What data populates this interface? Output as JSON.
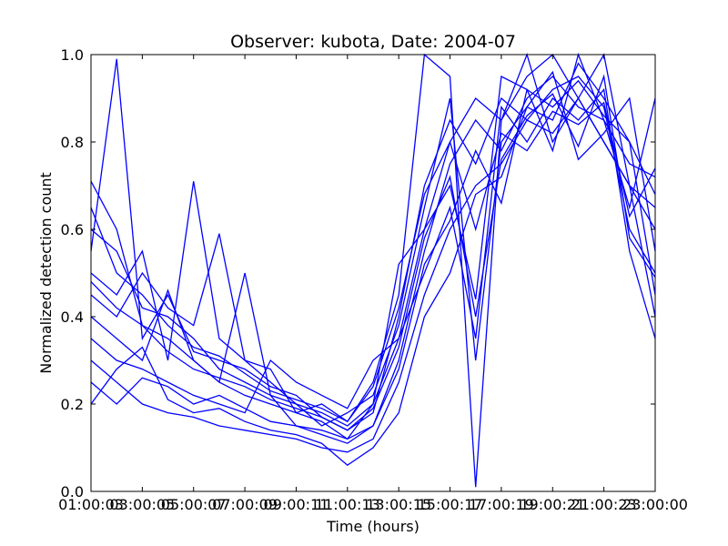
{
  "chart_data": {
    "type": "line",
    "title": "Observer: kubota, Date: 2004-07",
    "xlabel": "Time (hours)",
    "ylabel": "Normalized detection count",
    "x": [
      "01:00:00",
      "02:00:00",
      "03:00:00",
      "04:00:00",
      "05:00:00",
      "06:00:00",
      "07:00:00",
      "08:00:00",
      "09:00:00",
      "10:00:00",
      "11:00:00",
      "12:00:00",
      "13:00:00",
      "14:00:00",
      "15:00:00",
      "16:00:00",
      "17:00:00",
      "18:00:00",
      "19:00:00",
      "20:00:00",
      "21:00:00",
      "22:00:00",
      "23:00:00"
    ],
    "x_tick_labels": [
      "01:00:00",
      "03:00:00",
      "05:00:00",
      "07:00:00",
      "09:00:00",
      "11:00:00",
      "13:00:00",
      "15:00:00",
      "17:00:00",
      "19:00:00",
      "21:00:00",
      "23:00:00"
    ],
    "overlapping_tick_labels": [
      "01:00:03",
      "03:00:05",
      "05:00:07",
      "07:00:09",
      "09:00:11",
      "11:00:13",
      "13:00:15",
      "15:00:17",
      "17:00:19",
      "19:00:21",
      "21:00:23",
      "23:00:00"
    ],
    "ylim": [
      0.0,
      1.0
    ],
    "y_ticks": [
      "0.0",
      "0.2",
      "0.4",
      "0.6",
      "0.8",
      "1.0"
    ],
    "line_color": "#0000ff",
    "grid": false,
    "series": [
      {
        "values": [
          0.71,
          0.6,
          0.38,
          0.35,
          0.3,
          0.25,
          0.22,
          0.2,
          0.18,
          0.16,
          0.12,
          0.15,
          0.3,
          0.55,
          0.75,
          0.85,
          0.78,
          0.9,
          0.95,
          0.88,
          0.85,
          0.75,
          0.72
        ]
      },
      {
        "values": [
          0.6,
          0.55,
          0.42,
          0.4,
          0.35,
          0.28,
          0.25,
          0.22,
          0.2,
          0.18,
          0.15,
          0.2,
          0.35,
          0.6,
          0.8,
          0.9,
          0.85,
          0.95,
          1.0,
          0.9,
          0.8,
          0.7,
          0.65
        ]
      },
      {
        "values": [
          0.55,
          0.99,
          0.35,
          0.45,
          0.32,
          0.3,
          0.28,
          0.24,
          0.22,
          0.17,
          0.14,
          0.18,
          0.4,
          0.7,
          0.85,
          0.75,
          0.9,
          0.85,
          0.92,
          0.95,
          0.88,
          0.6,
          0.5
        ]
      },
      {
        "values": [
          0.5,
          0.45,
          0.55,
          0.3,
          0.71,
          0.35,
          0.3,
          0.25,
          0.2,
          0.15,
          0.18,
          0.22,
          0.38,
          0.65,
          0.9,
          0.3,
          0.8,
          0.88,
          0.85,
          0.98,
          0.9,
          0.8,
          0.45
        ]
      },
      {
        "values": [
          0.45,
          0.4,
          0.5,
          0.42,
          0.38,
          0.59,
          0.3,
          0.28,
          0.18,
          0.2,
          0.16,
          0.25,
          0.45,
          1.0,
          0.95,
          0.01,
          0.85,
          1.0,
          0.8,
          0.9,
          1.0,
          0.7,
          0.4
        ]
      },
      {
        "values": [
          0.4,
          0.35,
          0.3,
          0.46,
          0.3,
          0.25,
          0.5,
          0.22,
          0.15,
          0.14,
          0.12,
          0.2,
          0.52,
          0.6,
          0.7,
          0.44,
          0.95,
          0.92,
          0.78,
          1.0,
          0.85,
          0.65,
          0.9
        ]
      },
      {
        "values": [
          0.35,
          0.3,
          0.28,
          0.25,
          0.22,
          0.2,
          0.18,
          0.3,
          0.25,
          0.22,
          0.19,
          0.3,
          0.35,
          0.5,
          0.65,
          0.35,
          0.88,
          0.8,
          0.9,
          0.85,
          0.92,
          0.55,
          0.35
        ]
      },
      {
        "values": [
          0.3,
          0.25,
          0.2,
          0.18,
          0.17,
          0.15,
          0.14,
          0.13,
          0.12,
          0.1,
          0.09,
          0.12,
          0.25,
          0.45,
          0.6,
          0.7,
          0.75,
          0.85,
          0.82,
          0.9,
          0.8,
          0.7,
          0.6
        ]
      },
      {
        "values": [
          0.2,
          0.28,
          0.33,
          0.21,
          0.18,
          0.19,
          0.16,
          0.14,
          0.13,
          0.11,
          0.06,
          0.1,
          0.18,
          0.4,
          0.5,
          0.68,
          0.72,
          0.88,
          0.96,
          0.76,
          0.82,
          0.9,
          0.55
        ]
      },
      {
        "values": [
          0.25,
          0.2,
          0.26,
          0.24,
          0.2,
          0.22,
          0.19,
          0.16,
          0.15,
          0.13,
          0.11,
          0.15,
          0.28,
          0.52,
          0.62,
          0.78,
          0.66,
          0.92,
          0.88,
          0.94,
          0.86,
          0.8,
          0.68
        ]
      },
      {
        "values": [
          0.65,
          0.5,
          0.45,
          0.38,
          0.33,
          0.31,
          0.27,
          0.23,
          0.21,
          0.19,
          0.16,
          0.24,
          0.42,
          0.68,
          0.8,
          0.6,
          0.82,
          0.78,
          0.87,
          0.84,
          0.89,
          0.63,
          0.74
        ]
      },
      {
        "values": [
          0.48,
          0.42,
          0.38,
          0.32,
          0.28,
          0.26,
          0.24,
          0.21,
          0.19,
          0.17,
          0.14,
          0.19,
          0.33,
          0.58,
          0.72,
          0.4,
          0.76,
          0.86,
          0.91,
          0.79,
          0.95,
          0.58,
          0.49
        ]
      }
    ]
  }
}
